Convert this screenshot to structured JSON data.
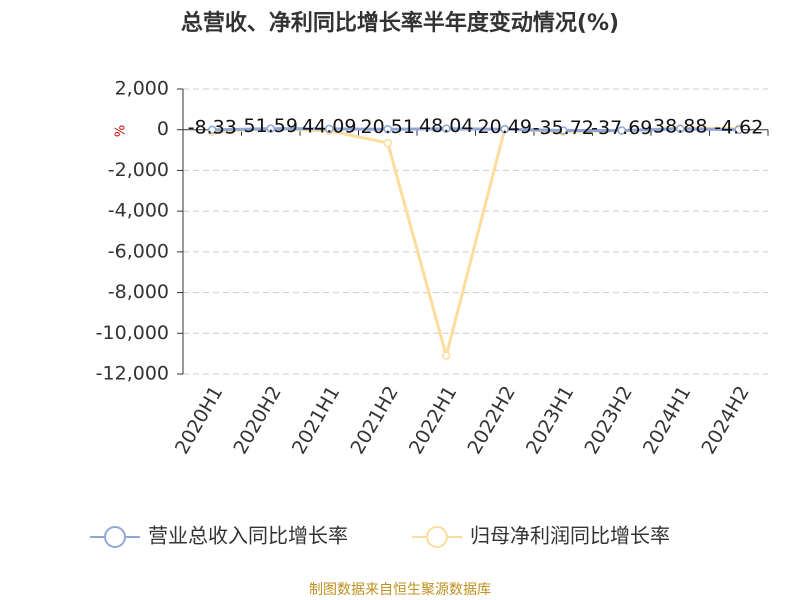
{
  "chart_data": {
    "type": "line",
    "title": "总营收、净利同比增长率半年度变动情况(%)",
    "y_label": "%",
    "categories": [
      "2020H1",
      "2020H2",
      "2021H1",
      "2021H2",
      "2022H1",
      "2022H2",
      "2023H1",
      "2023H2",
      "2024H1",
      "2024H2"
    ],
    "series": [
      {
        "name": "营业总收入同比增长率",
        "color": "#8fa8d8",
        "values": [
          -8.33,
          51.59,
          44.09,
          20.51,
          48.04,
          20.49,
          -35.72,
          -37.69,
          38.88,
          -4.62
        ],
        "labels": true
      },
      {
        "name": "归母净利润同比增长率",
        "color": "#fddc9c",
        "values": [
          -100,
          50,
          -50,
          -650,
          -11100,
          30,
          -100,
          -50,
          80,
          60
        ],
        "labels": false
      }
    ],
    "ylim": [
      -12000,
      2000
    ],
    "yticks": [
      {
        "value": -12000,
        "label": "-12,000"
      },
      {
        "value": -10000,
        "label": "-10,000"
      },
      {
        "value": -8000,
        "label": "-8,000"
      },
      {
        "value": -6000,
        "label": "-6,000"
      },
      {
        "value": -4000,
        "label": "-4,000"
      },
      {
        "value": -2000,
        "label": "-2,000"
      },
      0,
      {
        "value": 2000,
        "label": "2,000"
      }
    ],
    "grid": true,
    "source": "制图数据来自恒生聚源数据库"
  }
}
